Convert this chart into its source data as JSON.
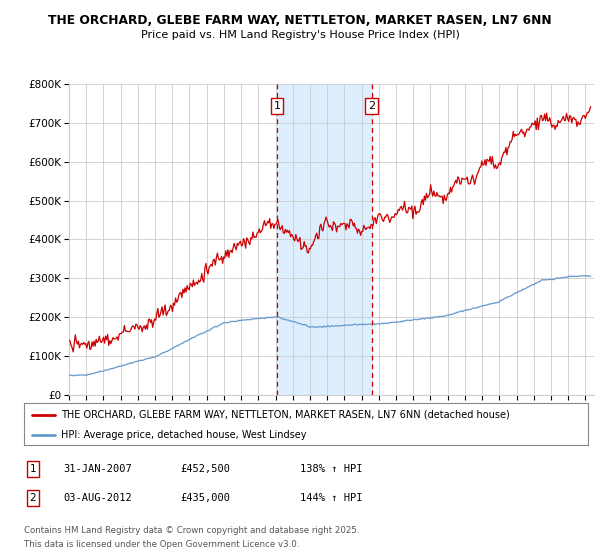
{
  "title_line1": "THE ORCHARD, GLEBE FARM WAY, NETTLETON, MARKET RASEN, LN7 6NN",
  "title_line2": "Price paid vs. HM Land Registry's House Price Index (HPI)",
  "background_color": "#ffffff",
  "plot_bg_color": "#ffffff",
  "grid_color": "#cccccc",
  "red_line_color": "#cc0000",
  "blue_line_color": "#6699cc",
  "highlight_bg": "#ddeeff",
  "marker1_x": 2007.08,
  "marker2_x": 2012.58,
  "marker1_label": "1",
  "marker2_label": "2",
  "legend_entry1": "THE ORCHARD, GLEBE FARM WAY, NETTLETON, MARKET RASEN, LN7 6NN (detached house)",
  "legend_entry2": "HPI: Average price, detached house, West Lindsey",
  "table_row1": [
    "1",
    "31-JAN-2007",
    "£452,500",
    "138% ↑ HPI"
  ],
  "table_row2": [
    "2",
    "03-AUG-2012",
    "£435,000",
    "144% ↑ HPI"
  ],
  "footer_line1": "Contains HM Land Registry data © Crown copyright and database right 2025.",
  "footer_line2": "This data is licensed under the Open Government Licence v3.0.",
  "ylim_max": 800000,
  "ylim_min": 0,
  "xmin": 1995.0,
  "xmax": 2025.5
}
